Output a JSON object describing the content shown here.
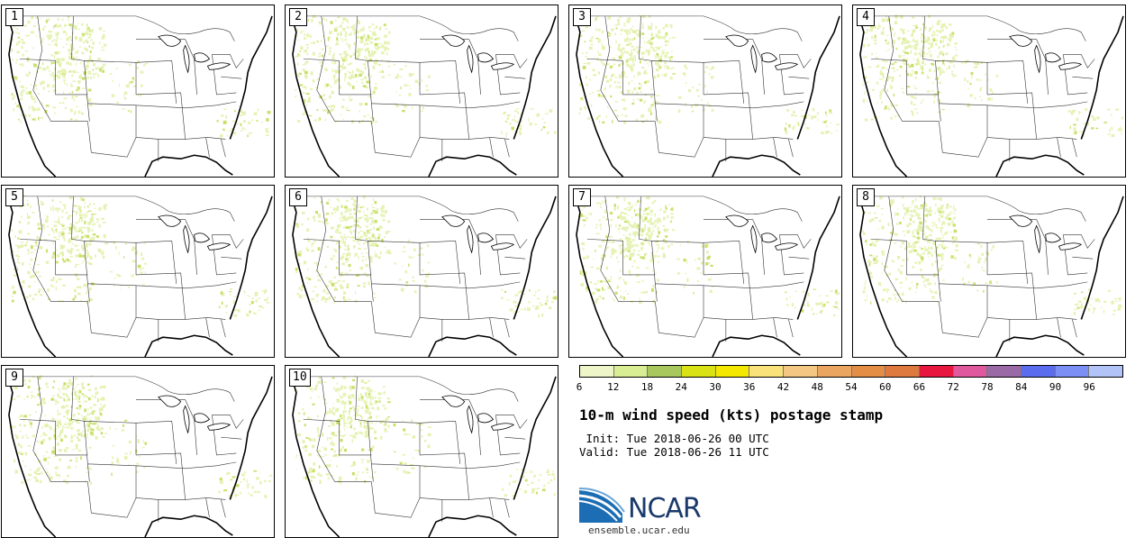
{
  "panels": [
    {
      "label": "1"
    },
    {
      "label": "2"
    },
    {
      "label": "3"
    },
    {
      "label": "4"
    },
    {
      "label": "5"
    },
    {
      "label": "6"
    },
    {
      "label": "7"
    },
    {
      "label": "8"
    },
    {
      "label": "9"
    },
    {
      "label": "10"
    }
  ],
  "colorbar": {
    "colors": [
      "#eef5c8",
      "#d9ee92",
      "#a8c85e",
      "#d8e214",
      "#f5e800",
      "#f9e27a",
      "#f4c782",
      "#eaa560",
      "#e48d45",
      "#df7a3e",
      "#e8173f",
      "#e0589e",
      "#9a6aa6",
      "#5c6cee",
      "#7b8ff5",
      "#b2c3f7"
    ],
    "labels": [
      "6",
      "12",
      "18",
      "24",
      "30",
      "36",
      "42",
      "48",
      "54",
      "60",
      "66",
      "72",
      "78",
      "84",
      "90",
      "96"
    ]
  },
  "title": "10-m wind speed (kts) postage stamp",
  "init_line": " Init: Tue 2018-06-26 00 UTC",
  "valid_line": "Valid: Tue 2018-06-26 11 UTC",
  "logo_text": "NCAR",
  "site": "ensemble.ucar.edu"
}
